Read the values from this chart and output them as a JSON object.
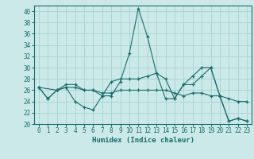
{
  "xlabel": "Humidex (Indice chaleur)",
  "bg_color": "#cce9e9",
  "grid_color": "#aad4d4",
  "line_color": "#1a6b6b",
  "xlim": [
    -0.5,
    23.5
  ],
  "ylim": [
    20,
    41
  ],
  "yticks": [
    20,
    22,
    24,
    26,
    28,
    30,
    32,
    34,
    36,
    38,
    40
  ],
  "xticks": [
    0,
    1,
    2,
    3,
    4,
    5,
    6,
    7,
    8,
    9,
    10,
    11,
    12,
    13,
    14,
    15,
    16,
    17,
    18,
    19,
    20,
    21,
    22,
    23
  ],
  "series1_x": [
    0,
    1,
    2,
    3,
    4,
    5,
    6,
    7,
    8,
    9,
    10,
    11,
    12,
    13,
    14,
    15,
    16,
    17,
    18,
    19,
    20,
    21,
    22,
    23
  ],
  "series1_y": [
    26.5,
    24.5,
    26,
    26.5,
    24,
    23,
    22.5,
    25,
    25,
    27.5,
    32.5,
    40.5,
    35.5,
    29,
    24.5,
    24.5,
    27,
    28.5,
    30,
    30,
    25,
    20.5,
    21,
    20.5
  ],
  "series2_x": [
    0,
    1,
    2,
    3,
    4,
    5,
    6,
    7,
    8,
    9,
    10,
    11,
    12,
    13,
    14,
    15,
    16,
    17,
    18,
    19,
    20,
    21,
    22,
    23
  ],
  "series2_y": [
    26.5,
    24.5,
    26,
    27,
    27,
    26,
    26,
    25,
    27.5,
    28,
    28,
    28,
    28.5,
    29,
    28,
    24.5,
    27,
    27,
    28.5,
    30,
    25,
    20.5,
    21,
    20.5
  ],
  "series3_x": [
    0,
    2,
    3,
    4,
    5,
    6,
    7,
    8,
    9,
    10,
    11,
    12,
    13,
    14,
    15,
    16,
    17,
    18,
    19,
    20,
    21,
    22,
    23
  ],
  "series3_y": [
    26.5,
    26,
    26.5,
    26.5,
    26,
    26,
    25.5,
    25.5,
    26,
    26,
    26,
    26,
    26,
    26,
    25.5,
    25,
    25.5,
    25.5,
    25,
    25,
    24.5,
    24,
    24
  ]
}
